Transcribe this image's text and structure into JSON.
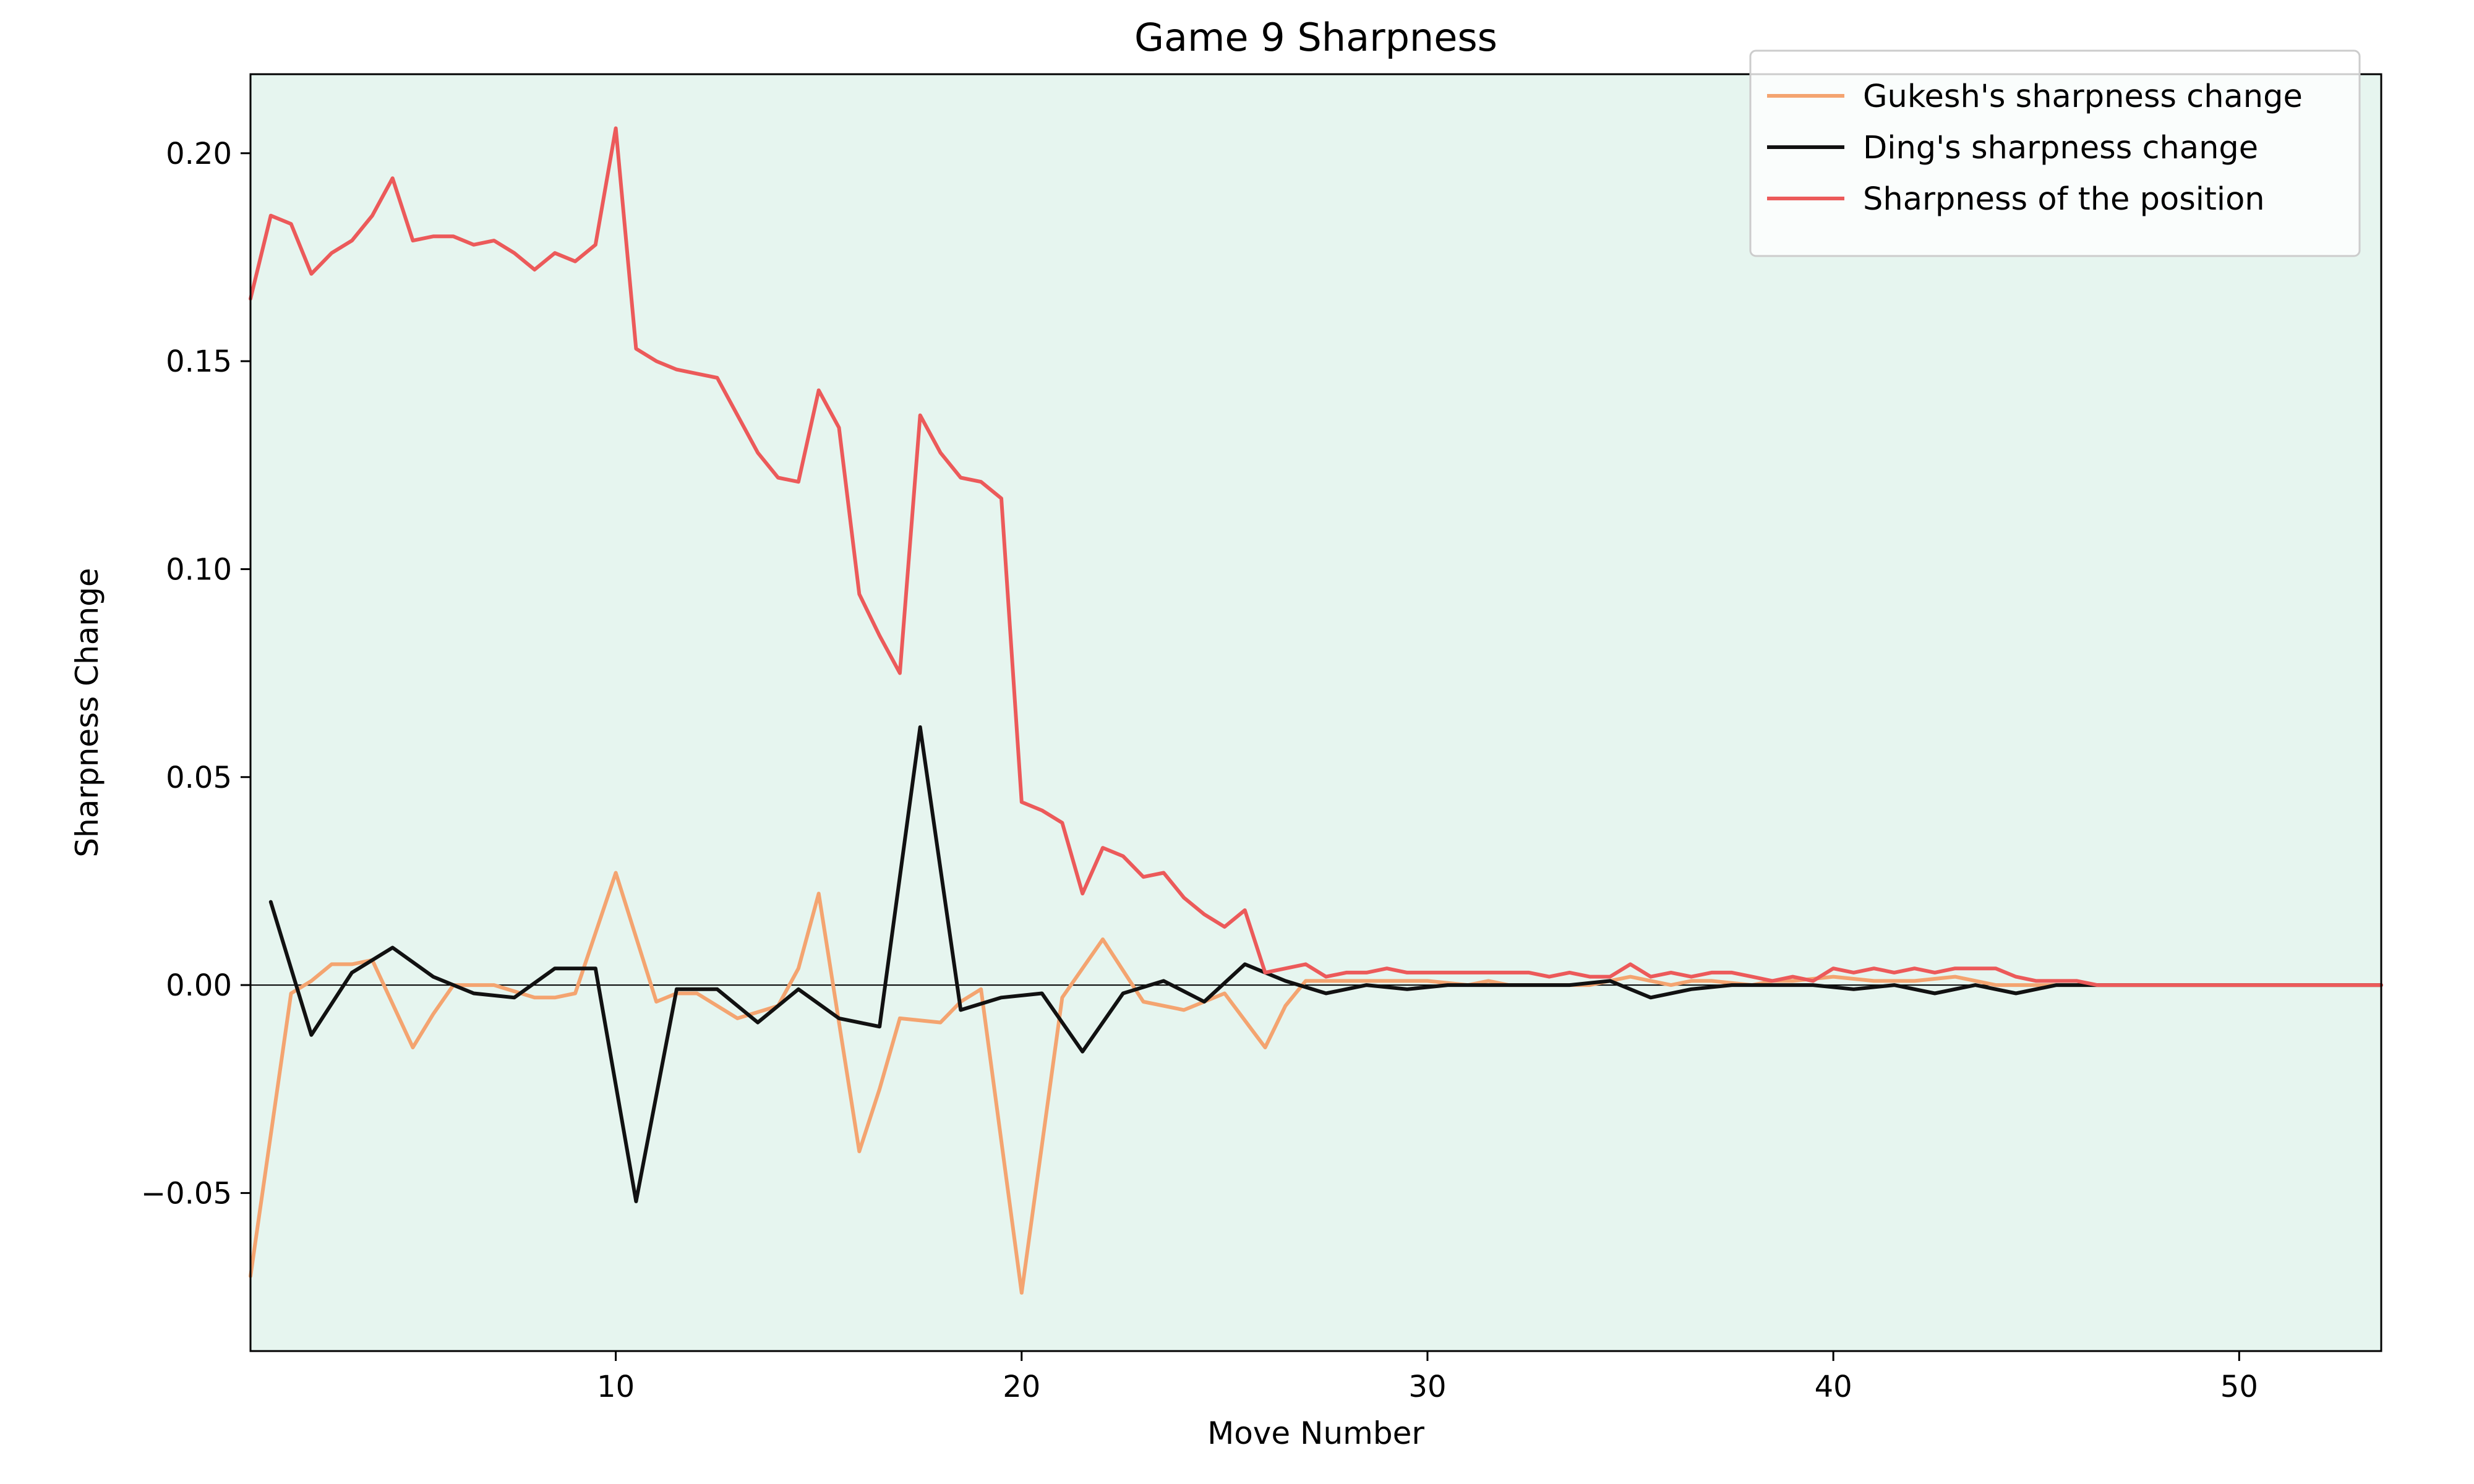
{
  "chart_data": {
    "type": "line",
    "title": "Game 9 Sharpness",
    "xlabel": "Move Number",
    "ylabel": "Sharpness Change",
    "xlim": [
      1,
      53.5
    ],
    "ylim": [
      -0.088,
      0.219
    ],
    "xticks": [
      10,
      20,
      30,
      40,
      50
    ],
    "yticks": [
      -0.05,
      0.0,
      0.05,
      0.1,
      0.15,
      0.2
    ],
    "ytick_labels": [
      "−0.05",
      "0.00",
      "0.05",
      "0.10",
      "0.15",
      "0.20"
    ],
    "grid": false,
    "zero_line": true,
    "background": "#e6f5ef",
    "legend_position": "top-right",
    "series": [
      {
        "name": "Gukesh's sharpness change",
        "color": "#f4a470",
        "x": [
          1,
          2,
          2.5,
          3,
          3.5,
          4,
          5,
          5.5,
          6,
          6.5,
          7,
          8,
          8.5,
          9,
          10,
          11,
          11.5,
          12,
          13,
          14,
          14.5,
          15,
          16,
          16.5,
          17,
          18,
          18.5,
          19,
          20,
          21,
          21.5,
          22,
          23,
          24,
          24.5,
          25,
          26,
          26.5,
          27,
          28,
          28.5,
          29,
          30,
          31,
          31.5,
          32,
          33,
          33.5,
          34,
          35,
          36,
          36.5,
          37,
          38,
          38.5,
          39,
          40,
          41,
          41.5,
          42,
          43,
          44,
          45,
          46,
          46.5,
          47,
          48,
          49,
          50,
          51,
          52,
          53.5
        ],
        "y": [
          -0.07,
          -0.002,
          0.001,
          0.005,
          0.005,
          0.006,
          -0.015,
          -0.007,
          0.0,
          0.0,
          0.0,
          -0.003,
          -0.003,
          -0.002,
          0.027,
          -0.004,
          -0.002,
          -0.002,
          -0.008,
          -0.005,
          0.004,
          0.022,
          -0.04,
          -0.025,
          -0.008,
          -0.009,
          -0.004,
          -0.001,
          -0.074,
          -0.003,
          0.004,
          0.011,
          -0.004,
          -0.006,
          -0.004,
          -0.002,
          -0.015,
          -0.005,
          0.001,
          0.001,
          0.001,
          0.001,
          0.001,
          0.0,
          0.001,
          0.0,
          0.0,
          0.0,
          0.0,
          0.002,
          0.0,
          0.001,
          0.001,
          0.0,
          0.001,
          0.001,
          0.002,
          0.001,
          0.001,
          0.001,
          0.002,
          0.0,
          0.0,
          0.0,
          0.0,
          0.0,
          0.0,
          0.0,
          0.0,
          0.0,
          0.0,
          0.0
        ]
      },
      {
        "name": "Ding's sharpness change",
        "color": "#111111",
        "x": [
          1.5,
          2.5,
          3.5,
          4.5,
          5.5,
          6.5,
          7.5,
          8.5,
          9.5,
          10.5,
          11.5,
          12.5,
          13.5,
          14.5,
          15.5,
          16.5,
          17.5,
          18.5,
          19.5,
          20.5,
          21.5,
          22.5,
          23.5,
          24.5,
          25.5,
          26.5,
          27.5,
          28.5,
          29.5,
          30.5,
          31.5,
          32.5,
          33.5,
          34.5,
          35.5,
          36.5,
          37.5,
          38.5,
          39.5,
          40.5,
          41.5,
          42.5,
          43.5,
          44.5,
          45.5,
          46.5,
          47.5,
          48.5,
          49.5,
          50.5,
          51.5,
          52.5,
          53.5
        ],
        "y": [
          0.02,
          -0.012,
          0.003,
          0.009,
          0.002,
          -0.002,
          -0.003,
          0.004,
          0.004,
          -0.052,
          -0.001,
          -0.001,
          -0.009,
          -0.001,
          -0.008,
          -0.01,
          0.062,
          -0.006,
          -0.003,
          -0.002,
          -0.016,
          -0.002,
          0.001,
          -0.004,
          0.005,
          0.001,
          -0.002,
          0.0,
          -0.001,
          0.0,
          0.0,
          0.0,
          0.0,
          0.001,
          -0.003,
          -0.001,
          0.0,
          0.0,
          0.0,
          -0.001,
          0.0,
          -0.002,
          0.0,
          -0.002,
          0.0,
          0.0,
          0.0,
          0.0,
          0.0,
          0.0,
          0.0,
          0.0,
          0.0
        ]
      },
      {
        "name": "Sharpness of the position",
        "color": "#ec5a5a",
        "x": [
          1,
          1.5,
          2,
          2.5,
          3,
          3.5,
          4,
          4.5,
          5,
          5.5,
          6,
          6.5,
          7,
          7.5,
          8,
          8.5,
          9,
          9.5,
          10,
          10.5,
          11,
          11.5,
          12,
          12.5,
          13,
          13.5,
          14,
          14.5,
          15,
          15.5,
          16,
          16.5,
          17,
          17.5,
          18,
          18.5,
          19,
          19.5,
          20,
          20.5,
          21,
          21.5,
          22,
          22.5,
          23,
          23.5,
          24,
          24.5,
          25,
          25.5,
          26,
          26.5,
          27,
          27.5,
          28,
          28.5,
          29,
          29.5,
          30,
          30.5,
          31,
          31.5,
          32,
          32.5,
          33,
          33.5,
          34,
          34.5,
          35,
          35.5,
          36,
          36.5,
          37,
          37.5,
          38,
          38.5,
          39,
          39.5,
          40,
          40.5,
          41,
          41.5,
          42,
          42.5,
          43,
          43.5,
          44,
          44.5,
          45,
          45.5,
          46,
          46.5,
          47,
          47.5,
          48,
          49,
          50,
          51,
          52,
          53.5
        ],
        "y": [
          0.165,
          0.185,
          0.183,
          0.171,
          0.176,
          0.179,
          0.185,
          0.194,
          0.179,
          0.18,
          0.18,
          0.178,
          0.179,
          0.176,
          0.172,
          0.176,
          0.174,
          0.178,
          0.206,
          0.153,
          0.15,
          0.148,
          0.147,
          0.146,
          0.137,
          0.128,
          0.122,
          0.121,
          0.143,
          0.134,
          0.094,
          0.084,
          0.075,
          0.137,
          0.128,
          0.122,
          0.121,
          0.117,
          0.044,
          0.042,
          0.039,
          0.022,
          0.033,
          0.031,
          0.026,
          0.027,
          0.021,
          0.017,
          0.014,
          0.018,
          0.003,
          0.004,
          0.005,
          0.002,
          0.003,
          0.003,
          0.004,
          0.003,
          0.003,
          0.003,
          0.003,
          0.003,
          0.003,
          0.003,
          0.002,
          0.003,
          0.002,
          0.002,
          0.005,
          0.002,
          0.003,
          0.002,
          0.003,
          0.003,
          0.002,
          0.001,
          0.002,
          0.001,
          0.004,
          0.003,
          0.004,
          0.003,
          0.004,
          0.003,
          0.004,
          0.004,
          0.004,
          0.002,
          0.001,
          0.001,
          0.001,
          0.0,
          0.0,
          0.0,
          0.0,
          0.0,
          0.0,
          0.0,
          0.0,
          0.0
        ]
      }
    ]
  }
}
